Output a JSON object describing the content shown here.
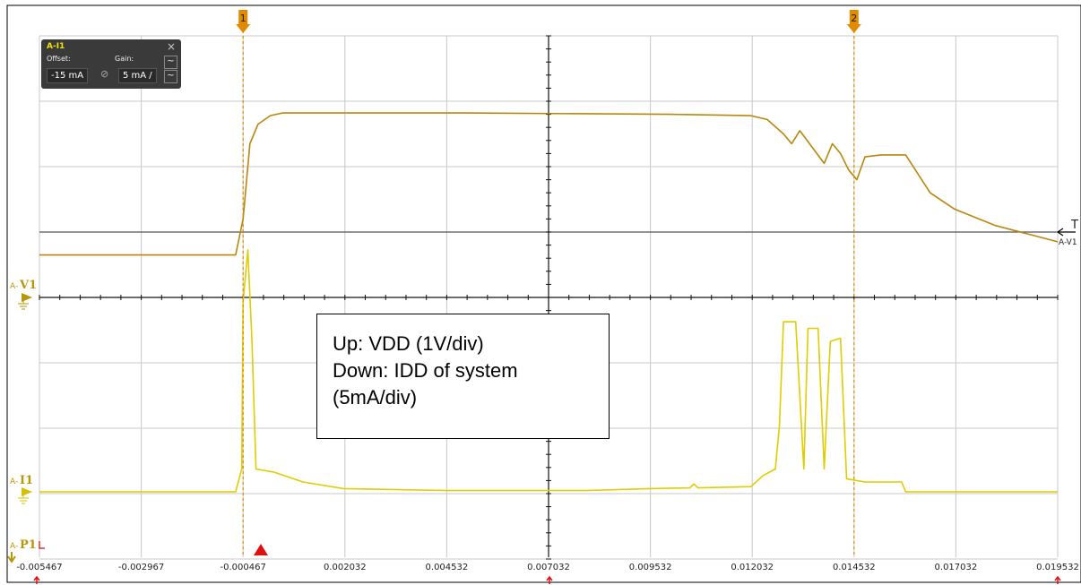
{
  "chart_data": {
    "type": "line",
    "x_tick_labels": [
      "-0.005467",
      "-0.002967",
      "-0.000467",
      "0.002032",
      "0.004532",
      "0.007032",
      "0.009532",
      "0.012032",
      "0.014532",
      "0.017032",
      "0.019532"
    ],
    "xlim": [
      -0.005467,
      0.019532
    ],
    "grid": true,
    "series": [
      {
        "name": "A-V1",
        "color": "#b8860b",
        "units_per_div": 1,
        "points": [
          [
            -0.005467,
            0.65
          ],
          [
            -0.00065,
            0.65
          ],
          [
            -0.000467,
            1.2
          ],
          [
            -0.0003,
            2.35
          ],
          [
            -0.0001,
            2.65
          ],
          [
            0.0002,
            2.78
          ],
          [
            0.0005,
            2.82
          ],
          [
            0.005,
            2.82
          ],
          [
            0.01,
            2.8
          ],
          [
            0.012,
            2.78
          ],
          [
            0.0124,
            2.72
          ],
          [
            0.0128,
            2.5
          ],
          [
            0.013,
            2.35
          ],
          [
            0.0132,
            2.55
          ],
          [
            0.0135,
            2.3
          ],
          [
            0.0138,
            2.05
          ],
          [
            0.014,
            2.35
          ],
          [
            0.0142,
            2.2
          ],
          [
            0.0144,
            1.95
          ],
          [
            0.0146,
            1.8
          ],
          [
            0.0148,
            2.15
          ],
          [
            0.0152,
            2.18
          ],
          [
            0.0158,
            2.18
          ],
          [
            0.0164,
            1.6
          ],
          [
            0.017,
            1.35
          ],
          [
            0.018,
            1.1
          ],
          [
            0.019532,
            0.85
          ]
        ]
      },
      {
        "name": "A-I1",
        "color": "#e0cc00",
        "units_per_div": 5,
        "points": [
          [
            -0.005467,
            0.0
          ],
          [
            -0.00065,
            0.0
          ],
          [
            -0.0005,
            0.35
          ],
          [
            -0.000467,
            2.9
          ],
          [
            -0.00035,
            3.7
          ],
          [
            -0.00025,
            2.3
          ],
          [
            -0.00015,
            0.35
          ],
          [
            0.0003,
            0.3
          ],
          [
            0.001,
            0.15
          ],
          [
            0.002,
            0.05
          ],
          [
            0.0045,
            0.02
          ],
          [
            0.008,
            0.02
          ],
          [
            0.0095,
            0.05
          ],
          [
            0.0105,
            0.06
          ],
          [
            0.0106,
            0.12
          ],
          [
            0.0107,
            0.06
          ],
          [
            0.012,
            0.08
          ],
          [
            0.0123,
            0.25
          ],
          [
            0.0126,
            0.35
          ],
          [
            0.0127,
            1.0
          ],
          [
            0.0128,
            2.6
          ],
          [
            0.0131,
            2.6
          ],
          [
            0.0133,
            0.35
          ],
          [
            0.0134,
            2.5
          ],
          [
            0.01365,
            2.5
          ],
          [
            0.0138,
            0.35
          ],
          [
            0.01395,
            2.3
          ],
          [
            0.0142,
            2.35
          ],
          [
            0.01435,
            0.2
          ],
          [
            0.0148,
            0.15
          ],
          [
            0.0157,
            0.15
          ],
          [
            0.0158,
            0.0
          ],
          [
            0.019532,
            0.0
          ]
        ]
      }
    ],
    "channel_labels": {
      "v1": {
        "prefix": "A-",
        "name": "V1"
      },
      "i1": {
        "prefix": "A-",
        "name": "I1"
      },
      "p1": {
        "prefix": "A-",
        "name": "P1"
      }
    },
    "trigger_label": {
      "letter": "T",
      "channel": "A-V1"
    },
    "cursors": [
      {
        "label": "1",
        "x": -0.000467
      },
      {
        "label": "2",
        "x": 0.014532
      }
    ]
  },
  "info_box": {
    "title": "A-I1",
    "offset_label": "Offset:",
    "gain_label": "Gain:",
    "offset_value": "-15 mA",
    "gain_value": "5 mA /",
    "close_symbol": "×",
    "lock_symbol": "⊘",
    "wave_symbol": "~"
  },
  "annotation": {
    "line1": "Up: VDD (1V/div)",
    "line2": "Down: IDD of system",
    "line3": "(5mA/div)"
  },
  "colors": {
    "voltage_trace": "#b8860b",
    "current_trace": "#e0cc00",
    "cursor": "#e08a00",
    "grid": "#c8c8c8"
  }
}
